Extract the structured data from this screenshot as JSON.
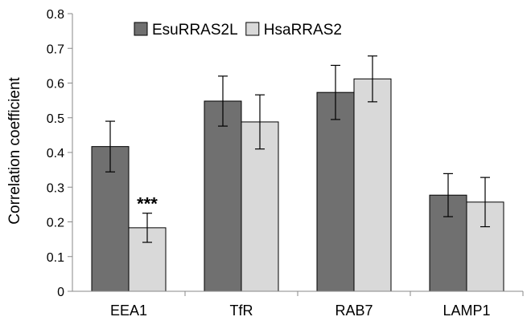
{
  "chart_data": {
    "type": "bar",
    "title": "",
    "xlabel": "",
    "ylabel": "Correlation coefficient",
    "ylim": [
      0,
      0.8
    ],
    "yticks": [
      "0",
      "0.1",
      "0.2",
      "0.3",
      "0.4",
      "0.5",
      "0.6",
      "0.7",
      "0.8"
    ],
    "categories": [
      "EEA1",
      "TfR",
      "RAB7",
      "LAMP1"
    ],
    "series": [
      {
        "name": "EsuRRAS2L",
        "values": [
          0.417,
          0.548,
          0.573,
          0.277
        ],
        "errors": [
          0.073,
          0.072,
          0.078,
          0.062
        ],
        "color": "#707070"
      },
      {
        "name": "HsaRRAS2",
        "values": [
          0.183,
          0.488,
          0.612,
          0.257
        ],
        "errors": [
          0.042,
          0.078,
          0.066,
          0.071
        ],
        "color": "#d9d9d9"
      }
    ],
    "annotations": [
      {
        "text": "***",
        "category": "EEA1",
        "series": "HsaRRAS2"
      }
    ],
    "legend_position": "top-left",
    "grid": false
  }
}
